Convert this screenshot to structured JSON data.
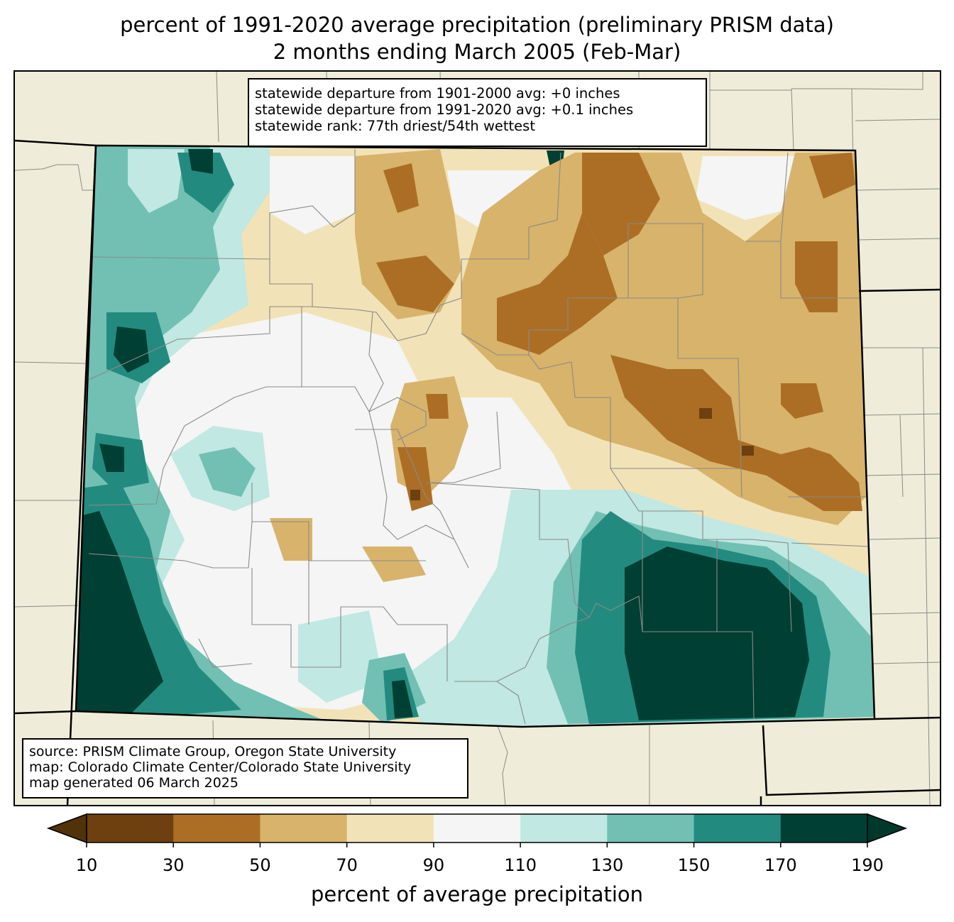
{
  "title": {
    "line1": "percent of 1991-2020 average precipitation (preliminary PRISM data)",
    "line2": "2 months ending March 2005 (Feb-Mar)"
  },
  "stats": {
    "line1": "statewide departure from 1901-2000 avg: +0 inches",
    "line2": "statewide departure from 1991-2020 avg: +0.1 inches",
    "line3": "statewide rank: 77th driest/54th wettest"
  },
  "source": {
    "line1": "source: PRISM Climate Group, Oregon State University",
    "line2": "map: Colorado Climate Center/Colorado State University",
    "line3": "map generated 06 March 2025"
  },
  "colorbar": {
    "title": "percent of average precipitation",
    "ticks": [
      "10",
      "30",
      "50",
      "70",
      "90",
      "110",
      "130",
      "150",
      "170",
      "190"
    ],
    "bins": [
      {
        "range": "10-30",
        "color": "#6e400f"
      },
      {
        "range": "30-50",
        "color": "#ac6e25"
      },
      {
        "range": "50-70",
        "color": "#d8b36b"
      },
      {
        "range": "70-90",
        "color": "#f2e2b7"
      },
      {
        "range": "90-110",
        "color": "#f4f5f4"
      },
      {
        "range": "110-130",
        "color": "#c1e8e2"
      },
      {
        "range": "130-150",
        "color": "#71c0b3"
      },
      {
        "range": "150-170",
        "color": "#238a7f"
      },
      {
        "range": "170-190",
        "color": "#003f33"
      }
    ],
    "under_color": "#523208",
    "over_color": "#00382c"
  },
  "colors": {
    "land_background": "#efedd9",
    "county_lines": "#808080",
    "state_lines": "#000000"
  }
}
